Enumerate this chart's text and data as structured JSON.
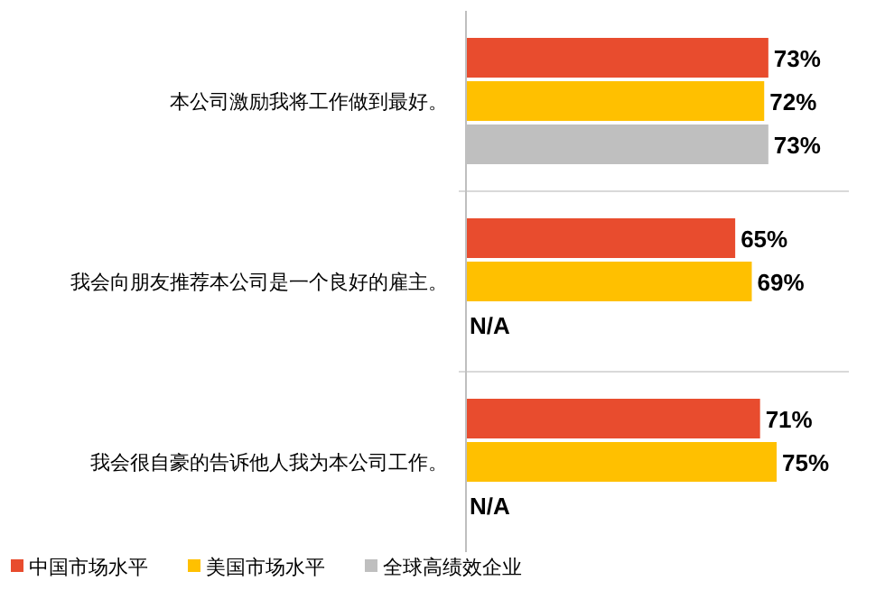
{
  "chart_data": {
    "type": "bar",
    "orientation": "horizontal",
    "relative": false,
    "categories": [
      "本公司激励我将工作做到最好。",
      "我会向朋友推荐本公司是一个良好的雇主。",
      "我会很自豪的告诉他人我为本公司工作。"
    ],
    "series": [
      {
        "name": "中国市场水平",
        "color": "#e84c2e",
        "values": [
          73,
          65,
          71
        ],
        "value_labels": [
          "73%",
          "65%",
          "71%"
        ]
      },
      {
        "name": "美国市场水平",
        "color": "#ffc000",
        "values": [
          72,
          69,
          75
        ],
        "value_labels": [
          "72%",
          "69%",
          "75%"
        ]
      },
      {
        "name": "全球高绩效企业",
        "color": "#bfbfbf",
        "values": [
          73,
          null,
          null
        ],
        "value_labels": [
          "73%",
          "N/A",
          "N/A"
        ]
      }
    ],
    "legend": "bottom left"
  }
}
